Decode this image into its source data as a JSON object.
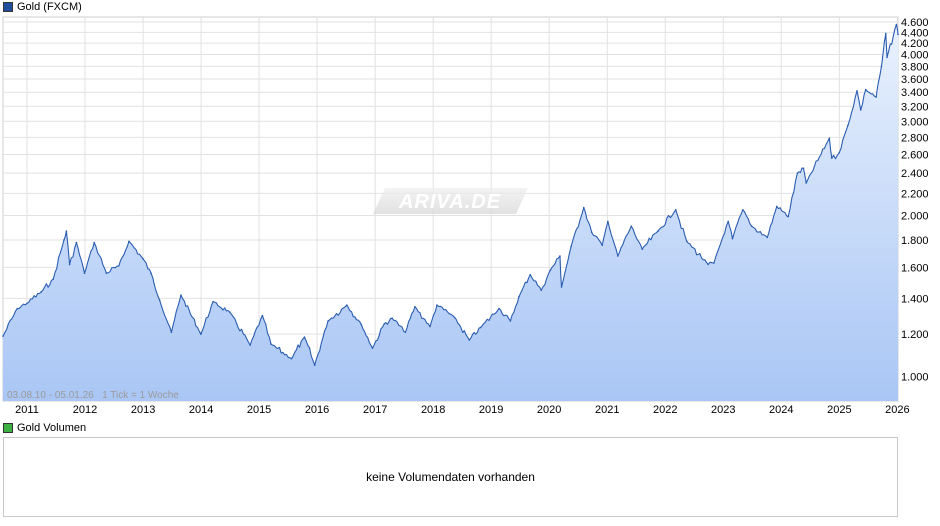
{
  "legend": {
    "price_label": "Gold (FXCM)",
    "price_color": "#1f4e9c",
    "volume_label": "Gold Volumen",
    "volume_color": "#3cb043"
  },
  "watermark": "ARIVA.DE",
  "info_text": "03.08.10 - 05.01.26   1 Tick = 1 Woche",
  "volume": {
    "empty_text": "keine Volumendaten vorhanden"
  },
  "chart_data": {
    "type": "area",
    "title": "Gold (FXCM)",
    "y_scale": "log",
    "ylim": [
      900,
      4700
    ],
    "xlim": [
      "2010-08-03",
      "2026-01-05"
    ],
    "grid": true,
    "line_color": "#2a5db0",
    "fill_top_color": "#e9f1fd",
    "fill_bottom_color": "#a9c6f5",
    "y_ticks": [
      1000,
      1200,
      1400,
      1600,
      1800,
      2000,
      2200,
      2400,
      2600,
      2800,
      3000,
      3200,
      3400,
      3600,
      3800,
      4000,
      4200,
      4400,
      4600
    ],
    "y_tick_labels": [
      "1.000",
      "1.200",
      "1.400",
      "1.600",
      "1.800",
      "2.000",
      "2.200",
      "2.400",
      "2.600",
      "2.800",
      "3.000",
      "3.200",
      "3.400",
      "3.600",
      "3.800",
      "4.000",
      "4.200",
      "4.400",
      "4.600"
    ],
    "x_ticks": [
      "2011-01-01",
      "2012-01-01",
      "2013-01-01",
      "2014-01-01",
      "2015-01-01",
      "2016-01-01",
      "2017-01-01",
      "2018-01-01",
      "2019-01-01",
      "2020-01-01",
      "2021-01-01",
      "2022-01-01",
      "2023-01-01",
      "2024-01-01",
      "2025-01-01",
      "2026-01-01"
    ],
    "x_tick_labels": [
      "2011",
      "2012",
      "2013",
      "2014",
      "2015",
      "2016",
      "2017",
      "2018",
      "2019",
      "2020",
      "2021",
      "2022",
      "2023",
      "2024",
      "2025",
      "2026"
    ],
    "series": [
      {
        "x": [
          "2010-08-03",
          "2010-11-01",
          "2011-01-01",
          "2011-04-01",
          "2011-06-15",
          "2011-08-22",
          "2011-09-06",
          "2011-09-26",
          "2011-11-08",
          "2011-12-29",
          "2012-02-28",
          "2012-05-15",
          "2012-08-01",
          "2012-10-04",
          "2012-12-31",
          "2013-02-20",
          "2013-04-15",
          "2013-06-28",
          "2013-08-27",
          "2013-12-31",
          "2014-03-17",
          "2014-06-30",
          "2014-11-06",
          "2015-01-22",
          "2015-03-17",
          "2015-07-24",
          "2015-10-14",
          "2015-12-17",
          "2016-03-10",
          "2016-07-06",
          "2016-10-06",
          "2016-12-15",
          "2017-02-27",
          "2017-04-18",
          "2017-07-10",
          "2017-09-08",
          "2017-12-12",
          "2018-01-25",
          "2018-05-15",
          "2018-08-16",
          "2018-10-26",
          "2019-02-20",
          "2019-05-02",
          "2019-06-25",
          "2019-09-04",
          "2019-11-12",
          "2020-01-08",
          "2020-03-09",
          "2020-03-19",
          "2020-05-18",
          "2020-08-06",
          "2020-09-25",
          "2020-11-30",
          "2021-01-05",
          "2021-03-08",
          "2021-06-01",
          "2021-08-09",
          "2021-11-16",
          "2022-03-08",
          "2022-05-16",
          "2022-09-28",
          "2022-11-03",
          "2023-02-01",
          "2023-02-28",
          "2023-05-04",
          "2023-06-29",
          "2023-10-05",
          "2023-12-04",
          "2024-02-14",
          "2024-04-12",
          "2024-05-20",
          "2024-06-06",
          "2024-10-30",
          "2024-11-14",
          "2024-12-31",
          "2025-02-24",
          "2025-04-22",
          "2025-05-15",
          "2025-06-16",
          "2025-08-20",
          "2025-09-23",
          "2025-10-20",
          "2025-10-28",
          "2025-12-26",
          "2026-01-05"
        ],
        "y": [
          1190,
          1340,
          1370,
          1440,
          1520,
          1800,
          1870,
          1620,
          1780,
          1560,
          1780,
          1560,
          1610,
          1790,
          1660,
          1560,
          1390,
          1210,
          1420,
          1200,
          1380,
          1320,
          1145,
          1300,
          1150,
          1080,
          1185,
          1050,
          1270,
          1360,
          1250,
          1130,
          1255,
          1285,
          1210,
          1350,
          1240,
          1360,
          1290,
          1170,
          1235,
          1340,
          1270,
          1410,
          1550,
          1450,
          1580,
          1680,
          1470,
          1750,
          2070,
          1860,
          1760,
          1950,
          1680,
          1910,
          1730,
          1870,
          2050,
          1790,
          1620,
          1630,
          1950,
          1810,
          2050,
          1910,
          1820,
          2080,
          1990,
          2400,
          2450,
          2300,
          2790,
          2560,
          2620,
          2950,
          3420,
          3150,
          3440,
          3330,
          3800,
          4380,
          3950,
          4550,
          4360
        ]
      }
    ]
  }
}
